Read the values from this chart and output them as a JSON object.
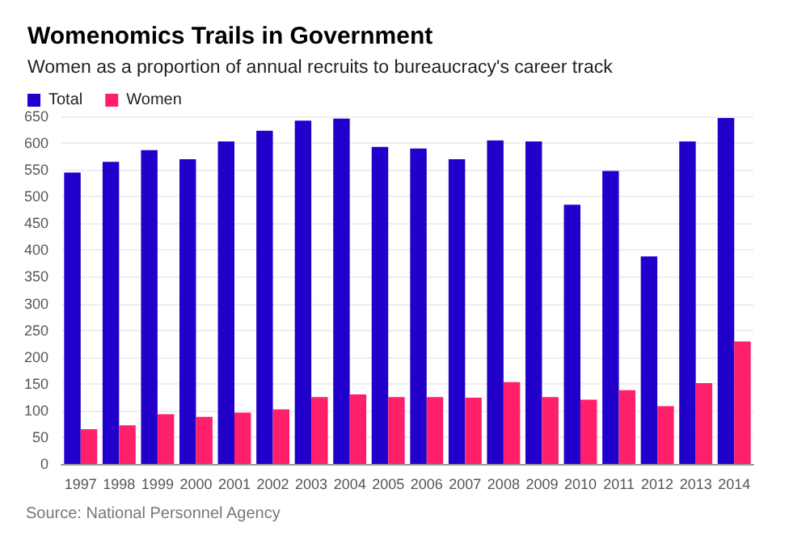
{
  "chart_data": {
    "type": "bar",
    "title": "Womenomics Trails in Government",
    "subtitle": "Women as a proportion of annual recruits to bureaucracy's career track",
    "categories": [
      "1997",
      "1998",
      "1999",
      "2000",
      "2001",
      "2002",
      "2003",
      "2004",
      "2005",
      "2006",
      "2007",
      "2008",
      "2009",
      "2010",
      "2011",
      "2012",
      "2013",
      "2014"
    ],
    "series": [
      {
        "name": "Total",
        "color": "#2200cc",
        "values": [
          545,
          565,
          587,
          570,
          603,
          623,
          642,
          646,
          593,
          590,
          570,
          605,
          603,
          485,
          548,
          388,
          603,
          647
        ]
      },
      {
        "name": "Women",
        "color": "#ff1f6b",
        "values": [
          65,
          72,
          93,
          88,
          96,
          102,
          125,
          130,
          125,
          125,
          124,
          153,
          125,
          120,
          138,
          108,
          151,
          229
        ]
      }
    ],
    "ylim": [
      0,
      650
    ],
    "yticks": [
      0,
      50,
      100,
      150,
      200,
      250,
      300,
      350,
      400,
      450,
      500,
      550,
      600,
      650
    ],
    "grid": "y",
    "legend": "top left",
    "annotations": [
      "Source: National Personnel Agency"
    ]
  }
}
